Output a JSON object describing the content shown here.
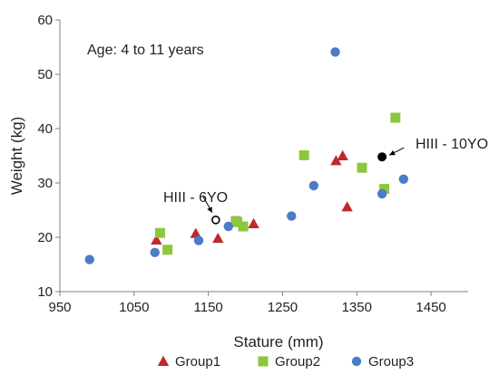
{
  "chart_data": {
    "type": "scatter",
    "title": "",
    "xlabel": "Stature (mm)",
    "ylabel": "Weight (kg)",
    "xlim": [
      950,
      1500
    ],
    "ylim": [
      10,
      60
    ],
    "x_ticks": [
      950,
      1050,
      1150,
      1250,
      1350,
      1450
    ],
    "y_ticks": [
      10,
      20,
      30,
      40,
      50,
      60
    ],
    "grid": false,
    "legend": "bottom",
    "annotations": {
      "age_note": "Age: 4 to 11 years",
      "hiii_6yo": "HIII - 6YO",
      "hiii_10yo": "HIII - 10YO"
    },
    "special_points": [
      {
        "label": "HIII - 6YO",
        "x": 1160,
        "y": 23.2,
        "marker": "open-circle"
      },
      {
        "label": "HIII - 10YO",
        "x": 1384,
        "y": 34.8,
        "marker": "filled-circle"
      }
    ],
    "series": [
      {
        "name": "Group1",
        "marker": "triangle",
        "color": "#c1272d",
        "points": [
          {
            "x": 1080,
            "y": 19.5
          },
          {
            "x": 1133,
            "y": 20.7
          },
          {
            "x": 1163,
            "y": 19.8
          },
          {
            "x": 1211,
            "y": 22.5
          },
          {
            "x": 1322,
            "y": 34.1
          },
          {
            "x": 1331,
            "y": 35.0
          },
          {
            "x": 1337,
            "y": 25.6
          }
        ]
      },
      {
        "name": "Group2",
        "marker": "square",
        "color": "#8dc63f",
        "points": [
          {
            "x": 1085,
            "y": 20.8
          },
          {
            "x": 1095,
            "y": 17.7
          },
          {
            "x": 1187,
            "y": 23.0
          },
          {
            "x": 1189,
            "y": 22.8
          },
          {
            "x": 1197,
            "y": 22.0
          },
          {
            "x": 1279,
            "y": 35.1
          },
          {
            "x": 1357,
            "y": 32.8
          },
          {
            "x": 1387,
            "y": 28.9
          },
          {
            "x": 1402,
            "y": 42.0
          }
        ]
      },
      {
        "name": "Group3",
        "marker": "circle",
        "color": "#4a7cc9",
        "points": [
          {
            "x": 990,
            "y": 15.9
          },
          {
            "x": 1078,
            "y": 17.2
          },
          {
            "x": 1137,
            "y": 19.4
          },
          {
            "x": 1177,
            "y": 22.0
          },
          {
            "x": 1262,
            "y": 23.9
          },
          {
            "x": 1292,
            "y": 29.5
          },
          {
            "x": 1321,
            "y": 54.1
          },
          {
            "x": 1384,
            "y": 28.0
          },
          {
            "x": 1413,
            "y": 30.7
          }
        ]
      }
    ]
  }
}
